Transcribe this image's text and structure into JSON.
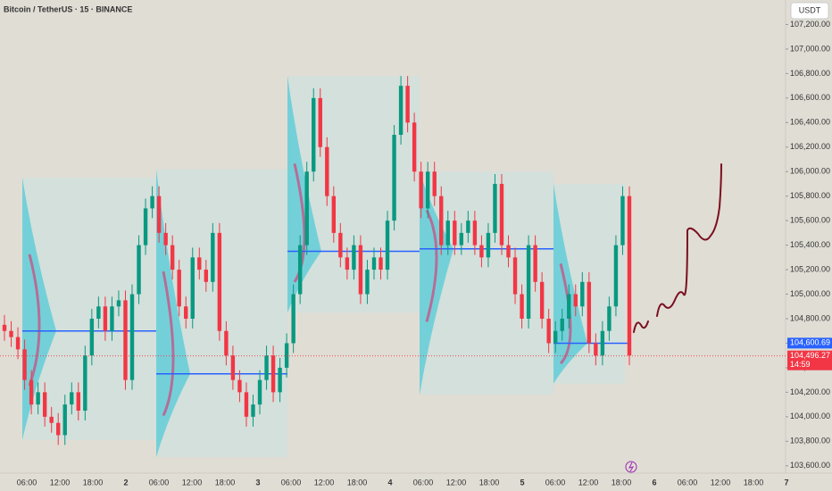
{
  "chart_data": {
    "type": "candlestick",
    "title": "Bitcoin / TetherUS · 15 · BINANCE",
    "currency": "USDT",
    "up_color": "#089981",
    "down_color": "#f23645",
    "ylim": [
      103540,
      107400
    ],
    "yticks": [
      {
        "value": 103600,
        "label": "103,600.00"
      },
      {
        "value": 103800,
        "label": "103,800.00"
      },
      {
        "value": 104000,
        "label": "104,000.00"
      },
      {
        "value": 104200,
        "label": "104,200.00"
      },
      {
        "value": 104400,
        "label": "104,400.00"
      },
      {
        "value": 104600,
        "label": "104,600.00"
      },
      {
        "value": 104800,
        "label": "104,800.00"
      },
      {
        "value": 105000,
        "label": "105,000.00"
      },
      {
        "value": 105200,
        "label": "105,200.00"
      },
      {
        "value": 105400,
        "label": "105,400.00"
      },
      {
        "value": 105600,
        "label": "105,600.00"
      },
      {
        "value": 105800,
        "label": "105,800.00"
      },
      {
        "value": 106000,
        "label": "106,000.00"
      },
      {
        "value": 106200,
        "label": "106,200.00"
      },
      {
        "value": 106400,
        "label": "106,400.00"
      },
      {
        "value": 106600,
        "label": "106,600.00"
      },
      {
        "value": 106800,
        "label": "106,800.00"
      },
      {
        "value": 107000,
        "label": "107,000.00"
      },
      {
        "value": 107200,
        "label": "107,200.00"
      }
    ],
    "x_labels": [
      "06:00",
      "12:00",
      "18:00",
      "2",
      "06:00",
      "12:00",
      "18:00",
      "3",
      "06:00",
      "12:00",
      "18:00",
      "4",
      "06:00",
      "12:00",
      "18:00",
      "5",
      "06:00",
      "12:00",
      "18:00",
      "6",
      "06:00",
      "12:00",
      "18:00",
      "7"
    ],
    "open": [
      104750,
      104700,
      104650,
      104550,
      104300,
      104100,
      104200,
      104000,
      103950,
      103850,
      104100,
      104200,
      104050,
      104500,
      104800,
      104900,
      104700,
      104900,
      104950,
      104300,
      105000,
      105400,
      105700,
      105800,
      105500,
      105400,
      105200,
      104900,
      104800,
      105300,
      105200,
      105100,
      105500,
      104700,
      104500,
      104300,
      104200,
      104000,
      104100,
      104300,
      104500,
      104200,
      104400,
      104600,
      105000,
      105400,
      106000,
      106600,
      106200,
      105800,
      105500,
      105300,
      105200,
      105400,
      105000,
      105200,
      105300,
      105200,
      105600,
      106300,
      106700,
      106400,
      106000,
      105700,
      106000,
      105800,
      105400,
      105600,
      105400,
      105500,
      105600,
      105400,
      105300,
      105500,
      105900,
      105400,
      105300,
      105000,
      104800,
      105400,
      105100,
      104800,
      104600,
      104700,
      104800,
      105000,
      104900,
      105100,
      104600,
      104500,
      104700,
      104900,
      105400,
      105800
    ],
    "close": [
      104700,
      104650,
      104550,
      104300,
      104100,
      104200,
      104000,
      103950,
      103850,
      104100,
      104200,
      104050,
      104500,
      104800,
      104900,
      104700,
      104900,
      104950,
      104300,
      105000,
      105400,
      105700,
      105800,
      105500,
      105400,
      105200,
      104900,
      104800,
      105300,
      105200,
      105100,
      105500,
      104700,
      104500,
      104300,
      104200,
      104000,
      104100,
      104300,
      104500,
      104200,
      104400,
      104600,
      105000,
      105400,
      106000,
      106600,
      106200,
      105800,
      105500,
      105300,
      105200,
      105400,
      105000,
      105200,
      105300,
      105200,
      105600,
      106300,
      106700,
      106400,
      106000,
      105700,
      106000,
      105800,
      105400,
      105600,
      105400,
      105500,
      105600,
      105400,
      105300,
      105500,
      105900,
      105400,
      105300,
      105000,
      104800,
      105400,
      105100,
      104800,
      104600,
      104700,
      104800,
      105000,
      104900,
      105100,
      104600,
      104500,
      104700,
      104900,
      105400,
      105800,
      104500
    ],
    "high": [
      104830,
      104780,
      104730,
      104630,
      104380,
      104280,
      104280,
      104080,
      104030,
      104180,
      104280,
      104280,
      104580,
      104880,
      104980,
      104980,
      104980,
      105030,
      105030,
      105080,
      105480,
      105780,
      105880,
      105880,
      105580,
      105480,
      105280,
      104980,
      105380,
      105380,
      105280,
      105580,
      105580,
      104780,
      104580,
      104380,
      104280,
      104180,
      104380,
      104580,
      104580,
      104480,
      104680,
      105080,
      105480,
      106080,
      106680,
      106680,
      106280,
      105880,
      105580,
      105380,
      105480,
      105480,
      105280,
      105380,
      105380,
      105680,
      106380,
      106780,
      106780,
      106480,
      106080,
      106080,
      106080,
      105880,
      105680,
      105680,
      105580,
      105680,
      105680,
      105480,
      105580,
      105980,
      105980,
      105480,
      105380,
      105080,
      105480,
      105480,
      105180,
      104880,
      104780,
      104880,
      105080,
      105080,
      105180,
      105180,
      104680,
      104780,
      104980,
      105480,
      105880,
      105880
    ],
    "low": [
      104620,
      104570,
      104470,
      104220,
      104020,
      104020,
      103920,
      103870,
      103770,
      103770,
      104020,
      103970,
      103970,
      104420,
      104720,
      104620,
      104620,
      104820,
      104220,
      104220,
      104920,
      105320,
      105620,
      105420,
      105320,
      105120,
      104820,
      104720,
      104720,
      105120,
      105020,
      105020,
      104620,
      104420,
      104220,
      104120,
      103920,
      103920,
      104020,
      104220,
      104120,
      104120,
      104320,
      104520,
      104920,
      105320,
      105920,
      106120,
      105720,
      105420,
      105220,
      105120,
      105120,
      104920,
      104920,
      105120,
      105120,
      105120,
      105520,
      106220,
      106320,
      105920,
      105620,
      105620,
      105720,
      105320,
      105320,
      105320,
      105320,
      105420,
      105320,
      105220,
      105220,
      105420,
      105320,
      105220,
      104920,
      104720,
      104720,
      105020,
      104720,
      104520,
      104520,
      104620,
      104720,
      104820,
      104820,
      104520,
      104420,
      104420,
      104620,
      104820,
      105320,
      104420
    ],
    "sessions": [
      {
        "top": 105950,
        "bottom": 103810,
        "poc": 104700
      },
      {
        "top": 106020,
        "bottom": 103670,
        "poc": 104350
      },
      {
        "top": 106780,
        "bottom": 104850,
        "poc": 105350
      },
      {
        "top": 106000,
        "bottom": 104180,
        "poc": 105370
      },
      {
        "top": 105900,
        "bottom": 104270,
        "poc": 104600
      }
    ],
    "poc_price": {
      "value": 104600.69,
      "label": "104,600.69"
    },
    "last_price": {
      "value": 104496.27,
      "label": "104,496.27"
    },
    "countdown": "14:59"
  }
}
